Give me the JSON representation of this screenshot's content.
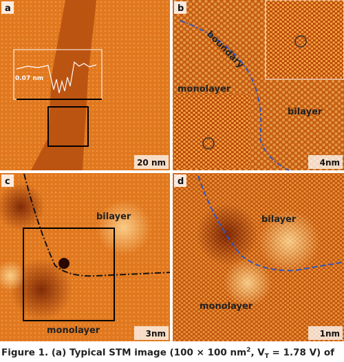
{
  "panels": [
    {
      "letter": "a",
      "profile_label": "0.07 nm",
      "scale": "20 nm"
    },
    {
      "letter": "b",
      "boundary": "boundary",
      "left": "monolayer",
      "right": "bilayer",
      "scale": "4nm"
    },
    {
      "letter": "c",
      "top": "bilayer",
      "bottom": "monolayer",
      "scale": "3nm"
    },
    {
      "letter": "d",
      "top": "bilayer",
      "bottom": "monolayer",
      "scale": "1nm"
    }
  ],
  "caption": {
    "label": "Figure 1.",
    "text1": "(a) Typical STM image (100 × 100 nm",
    "sup": "2",
    "text2": ", V",
    "sub": "T",
    "text3": " = 1.78 V) of"
  }
}
